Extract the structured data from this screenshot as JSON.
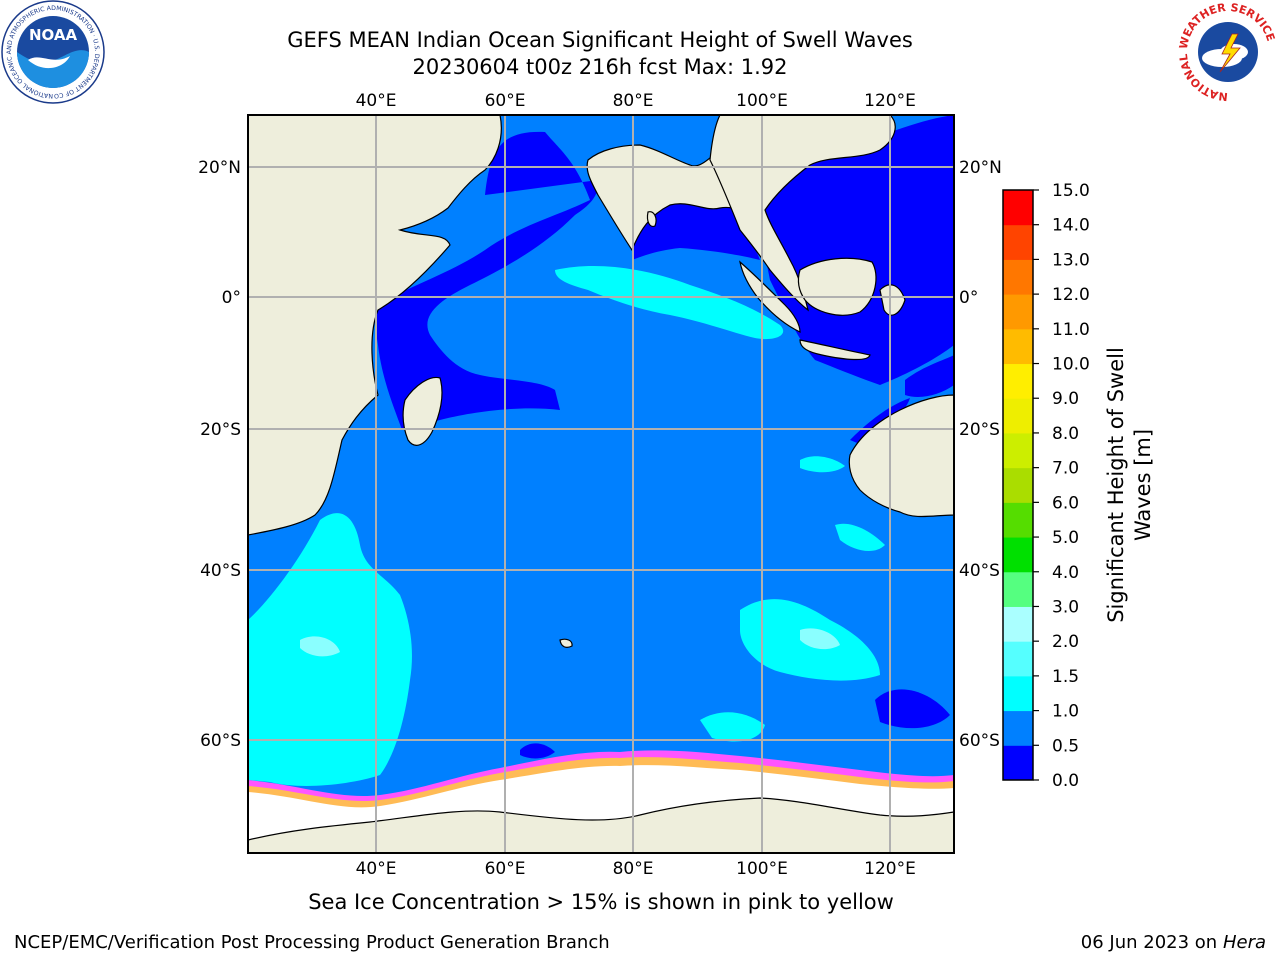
{
  "title": {
    "line1": "GEFS MEAN Indian Ocean Significant Height of Swell Waves",
    "line2": "20230604 t00z 216h fcst   Max: 1.92"
  },
  "logos": {
    "noaa": {
      "text": "NOAA",
      "ring_text": "NATIONAL OCEANIC AND ATMOSPHERIC ADMINISTRATION · U.S. DEPARTMENT OF COMMERCE"
    },
    "nws": {
      "ring_text": "NATIONAL WEATHER SERVICE"
    }
  },
  "map": {
    "lon_labels_top": [
      "40°E",
      "60°E",
      "80°E",
      "100°E",
      "120°E"
    ],
    "lon_labels_bottom": [
      "40°E",
      "60°E",
      "80°E",
      "100°E",
      "120°E"
    ],
    "lat_labels_left": [
      "20°N",
      "0°",
      "20°S",
      "40°S",
      "60°S"
    ],
    "lat_labels_right": [
      "20°N",
      "0°",
      "20°S",
      "40°S",
      "60°S"
    ],
    "colors": {
      "land": "#eeeedc",
      "ocean_base": "#0080ff",
      "low_swell": "#0000ff",
      "high_swell": "#00ffff",
      "ice": "#ffffff",
      "ice_edge_pink": "#ff55ff",
      "ice_edge_yellow": "#ffbb55",
      "grid": "#b0b0b0"
    }
  },
  "colorbar": {
    "title_line1": "Significant Height of Swell",
    "title_line2": "Waves [m]",
    "tick_labels": [
      "0.0",
      "0.5",
      "1.0",
      "1.5",
      "2.0",
      "3.0",
      "4.0",
      "5.0",
      "6.0",
      "7.0",
      "8.0",
      "9.0",
      "10.0",
      "11.0",
      "12.0",
      "13.0",
      "14.0",
      "15.0"
    ],
    "colors": [
      "#0000ff",
      "#0080ff",
      "#00ffff",
      "#55ffff",
      "#aaffff",
      "#55ff80",
      "#00e000",
      "#55dd00",
      "#aadd00",
      "#ccee00",
      "#eeee00",
      "#ffee00",
      "#ffbb00",
      "#ff9900",
      "#ff7700",
      "#ff4400",
      "#ff0000"
    ]
  },
  "caption": "Sea Ice Concentration > 15% is shown in pink to yellow",
  "footer": {
    "left": "NCEP/EMC/Verification Post Processing Product Generation Branch",
    "right_date": "06 Jun 2023 on",
    "right_host": "Hera"
  }
}
